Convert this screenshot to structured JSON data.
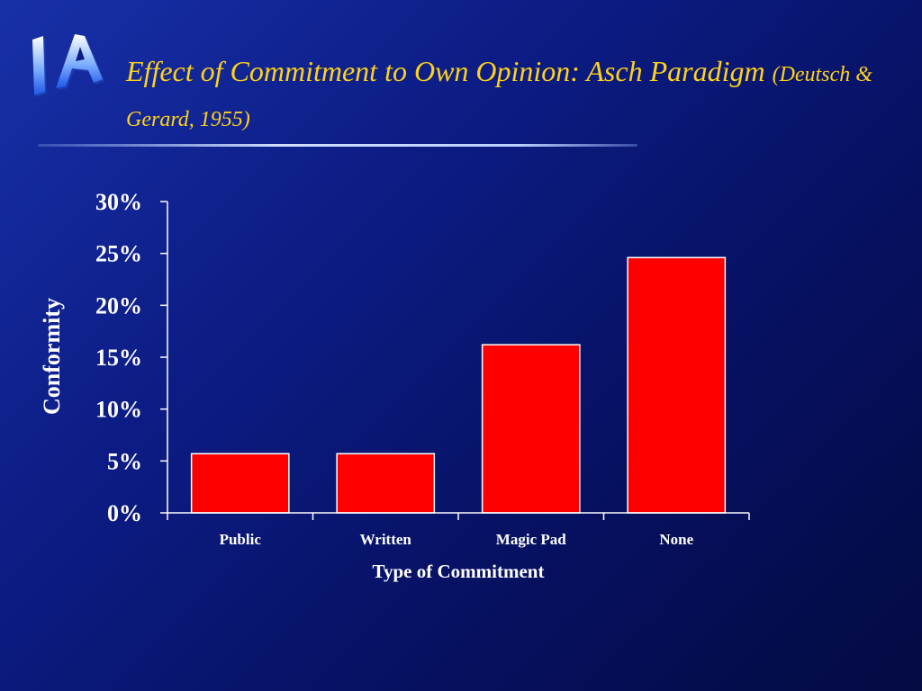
{
  "slide": {
    "logo_text": "IA",
    "title_main": "Effect of Commitment to Own Opinion:  Asch Paradigm",
    "title_citation": "(Deutsch & Gerard, 1955)"
  },
  "colors": {
    "title": "#ffd21a",
    "bar_fill": "#ff0000",
    "bar_stroke": "#ffffff",
    "axis": "#ffffff",
    "background": "#0c1c84"
  },
  "chart_data": {
    "type": "bar",
    "title": "",
    "xlabel": "Type of Commitment",
    "ylabel": "Conformity",
    "categories": [
      "Public",
      "Written",
      "Magic Pad",
      "None"
    ],
    "values": [
      5.7,
      5.7,
      16.2,
      24.6
    ],
    "ylim": [
      0,
      30
    ],
    "yticks": [
      0,
      5,
      10,
      15,
      20,
      25,
      30
    ],
    "ytick_labels": [
      "0%",
      "5%",
      "10%",
      "15%",
      "20%",
      "25%",
      "30%"
    ],
    "grid": false,
    "legend": "none"
  }
}
